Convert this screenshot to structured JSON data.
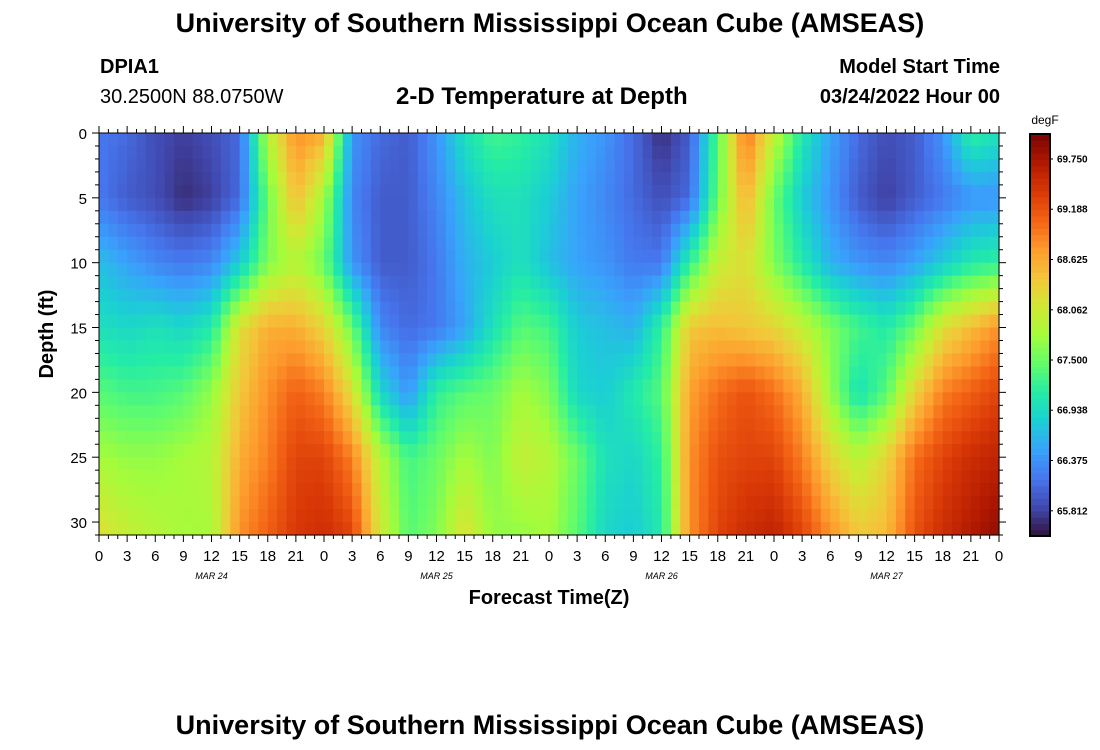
{
  "page": {
    "title": "University of Southern Mississippi Ocean Cube (AMSEAS)",
    "footer_title": "University of Southern Mississippi Ocean Cube (AMSEAS)",
    "station_id": "DPIA1",
    "station_coords": "30.2500N  88.0750W",
    "plot_title": "2-D Temperature at Depth",
    "model_start_label": "Model Start Time",
    "model_start_value": "03/24/2022 Hour 00"
  },
  "chart_data": {
    "type": "heatmap",
    "title": "2-D Temperature at Depth",
    "xlabel": "Forecast Time(Z)",
    "ylabel": "Depth (ft)",
    "x_tick_labels": [
      "0",
      "3",
      "6",
      "9",
      "12",
      "15",
      "18",
      "21",
      "0",
      "3",
      "6",
      "9",
      "12",
      "15",
      "18",
      "21",
      "0",
      "3",
      "6",
      "9",
      "12",
      "15",
      "18",
      "21",
      "0",
      "3",
      "6",
      "9",
      "12",
      "15",
      "18",
      "21",
      "0"
    ],
    "day_labels": [
      "MAR 24",
      "MAR 25",
      "MAR 26",
      "MAR 27"
    ],
    "y_tick_labels": [
      "0",
      "5",
      "10",
      "15",
      "20",
      "25",
      "30"
    ],
    "xlim": [
      0,
      96
    ],
    "ylim": [
      0,
      31
    ],
    "colorbar": {
      "unit": "degF",
      "ticks": [
        "69.750",
        "69.188",
        "68.625",
        "68.062",
        "67.500",
        "66.938",
        "66.375",
        "65.812"
      ],
      "range": [
        65.53,
        70.03
      ]
    },
    "depths_ft": [
      0,
      5,
      10,
      15,
      20,
      25,
      31
    ],
    "hours": [
      0,
      3,
      6,
      9,
      12,
      15,
      18,
      21,
      24,
      27,
      30,
      33,
      36,
      39,
      42,
      45,
      48,
      51,
      54,
      57,
      60,
      63,
      66,
      69,
      72,
      75,
      78,
      81,
      84,
      87,
      90,
      93,
      96
    ],
    "temperature_degF": [
      [
        66.2,
        66.1,
        65.9,
        65.8,
        65.9,
        66.1,
        67.9,
        68.8,
        68.6,
        66.4,
        66.1,
        66.0,
        66.4,
        67.0,
        67.3,
        67.2,
        67.0,
        66.6,
        66.4,
        66.1,
        65.7,
        66.0,
        67.4,
        69.0,
        68.0,
        67.1,
        66.5,
        66.1,
        65.9,
        66.0,
        66.4,
        67.2,
        67.0
      ],
      [
        66.2,
        66.0,
        65.9,
        65.7,
        65.8,
        66.1,
        67.5,
        68.5,
        67.8,
        66.3,
        66.0,
        66.0,
        66.3,
        66.7,
        67.0,
        67.0,
        66.8,
        66.5,
        66.3,
        66.1,
        65.9,
        66.1,
        67.5,
        68.6,
        67.5,
        66.8,
        66.4,
        66.0,
        65.8,
        66.0,
        66.2,
        66.4,
        66.4
      ],
      [
        66.7,
        66.5,
        66.3,
        66.2,
        66.3,
        66.8,
        67.6,
        67.9,
        67.5,
        66.4,
        66.0,
        66.0,
        66.2,
        66.6,
        66.8,
        67.0,
        66.7,
        66.5,
        66.4,
        66.2,
        66.2,
        67.2,
        68.0,
        68.2,
        67.6,
        67.1,
        66.6,
        66.4,
        66.3,
        66.5,
        66.8,
        67.1,
        67.2
      ],
      [
        67.0,
        66.9,
        67.0,
        66.9,
        67.1,
        68.2,
        68.6,
        68.6,
        68.3,
        67.5,
        66.3,
        66.1,
        66.2,
        66.5,
        67.0,
        67.4,
        67.3,
        66.8,
        66.7,
        66.6,
        67.2,
        68.4,
        68.5,
        68.4,
        68.3,
        68.0,
        67.6,
        67.3,
        67.1,
        67.5,
        68.2,
        68.5,
        68.8
      ],
      [
        67.4,
        67.3,
        67.3,
        67.4,
        67.7,
        68.4,
        68.8,
        69.1,
        68.9,
        68.2,
        66.9,
        66.4,
        67.2,
        67.4,
        67.5,
        67.8,
        67.6,
        66.9,
        66.8,
        67.1,
        67.4,
        68.7,
        69.0,
        69.2,
        69.0,
        68.6,
        67.7,
        67.0,
        67.4,
        68.3,
        68.9,
        69.1,
        69.3
      ],
      [
        67.8,
        67.7,
        67.7,
        67.8,
        67.9,
        68.6,
        68.9,
        69.3,
        69.3,
        68.9,
        67.9,
        67.3,
        67.5,
        67.8,
        67.6,
        68.0,
        67.9,
        67.5,
        67.0,
        66.9,
        67.2,
        68.8,
        69.2,
        69.3,
        69.3,
        68.9,
        68.3,
        67.9,
        68.3,
        69.0,
        69.3,
        69.5,
        69.6
      ],
      [
        68.2,
        68.0,
        67.9,
        67.8,
        67.8,
        68.8,
        69.1,
        69.4,
        69.5,
        69.3,
        68.1,
        67.4,
        67.6,
        68.2,
        67.7,
        67.7,
        67.8,
        67.4,
        66.9,
        66.8,
        67.1,
        68.8,
        69.3,
        69.5,
        69.6,
        69.3,
        68.8,
        68.4,
        68.5,
        69.2,
        69.5,
        69.7,
        69.9
      ]
    ]
  }
}
